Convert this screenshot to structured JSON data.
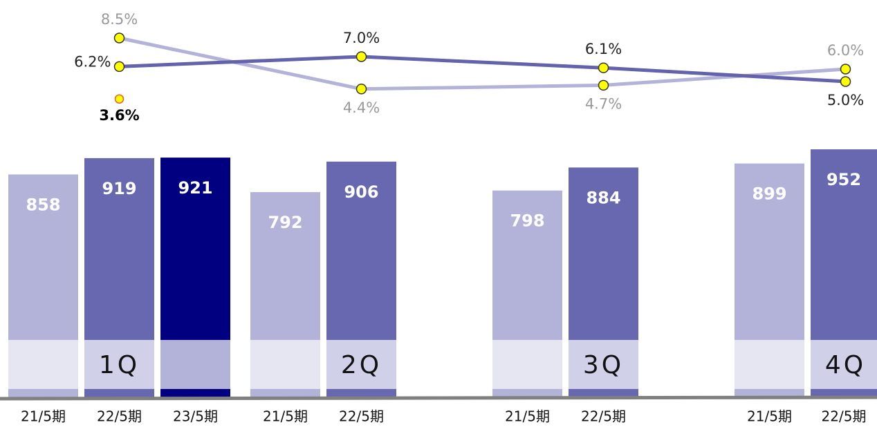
{
  "chart_data": {
    "type": "bar",
    "categories": [
      "1Q",
      "2Q",
      "3Q",
      "4Q"
    ],
    "series": [
      {
        "name": "21/5期",
        "color": "#b3b3d9",
        "band_color": "#e6e6f2",
        "values": [
          858,
          792,
          798,
          899
        ],
        "rates": [
          8.5,
          4.4,
          4.7,
          6.0
        ],
        "rate_labels": [
          "8.5%",
          "4.4%",
          "4.7%",
          "6.0%"
        ],
        "line_color": "#b3b3d9",
        "label_color": "#999999"
      },
      {
        "name": "22/5期",
        "color": "#6868b0",
        "band_color": "#d0d0e8",
        "values": [
          919,
          906,
          884,
          952
        ],
        "rates": [
          6.2,
          7.0,
          6.1,
          5.0
        ],
        "rate_labels": [
          "6.2%",
          "7.0%",
          "6.1%",
          "5.0%"
        ],
        "line_color": "#6262ad",
        "label_color": "#222222"
      },
      {
        "name": "23/5期",
        "color": "#000080",
        "band_color": "#b3b3d9",
        "values": [
          921,
          null,
          null,
          null
        ],
        "rates": [
          3.6,
          null,
          null,
          null
        ],
        "rate_labels": [
          "3.6%",
          null,
          null,
          null
        ],
        "line_color": "#000080",
        "label_color": "#000000"
      }
    ],
    "ylim": [
      25,
      960
    ],
    "y2lim": [
      2,
      10
    ]
  }
}
